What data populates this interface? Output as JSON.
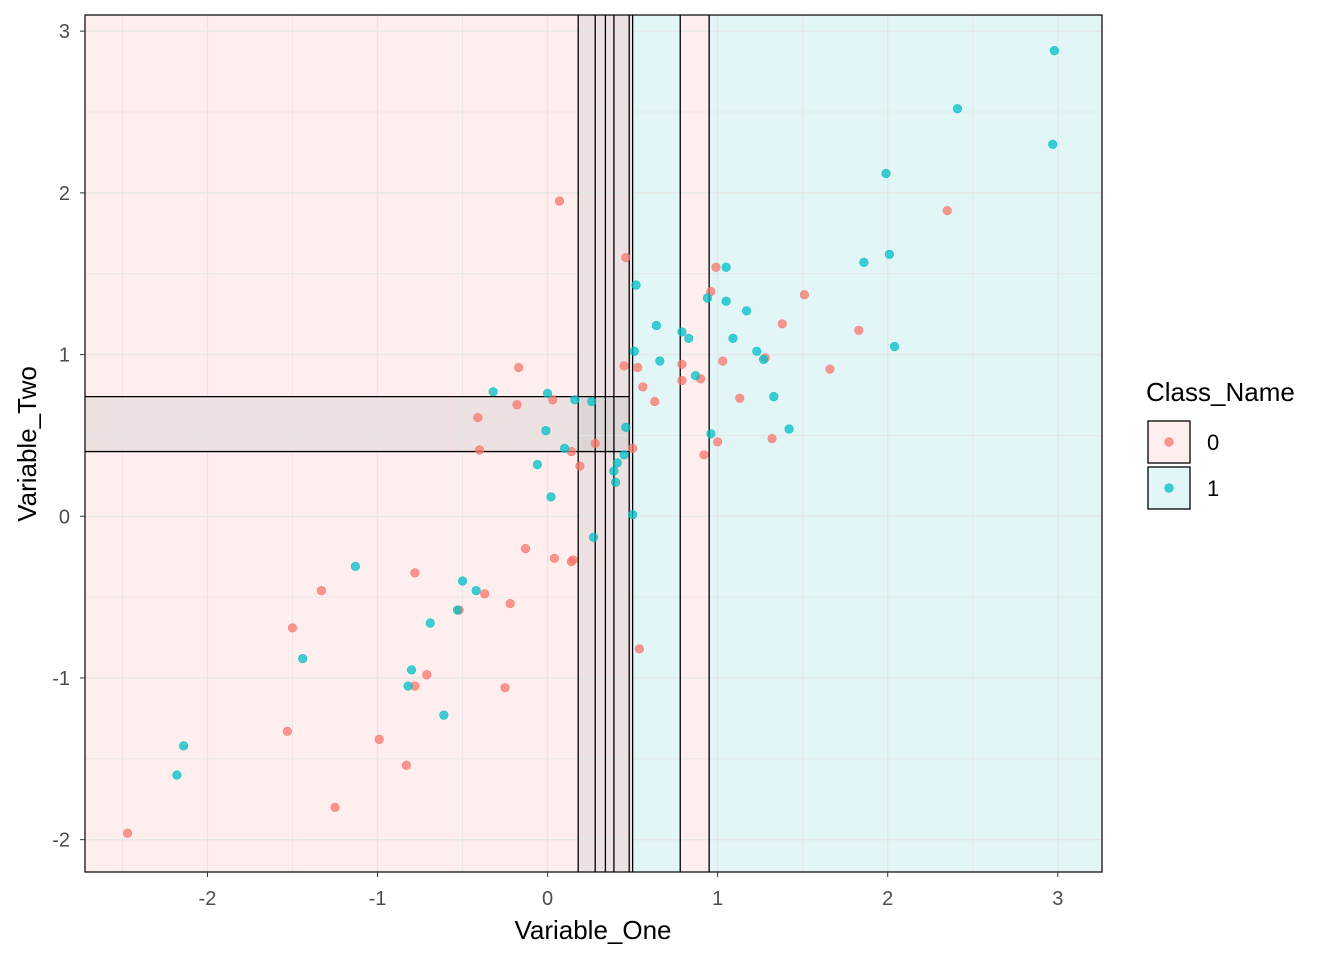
{
  "chart_data": {
    "type": "scatter",
    "title": "",
    "xlabel": "Variable_One",
    "ylabel": "Variable_Two",
    "xlim": [
      -2.72,
      3.26
    ],
    "ylim": [
      -2.2,
      3.1
    ],
    "x_ticks": [
      -2,
      -1,
      0,
      1,
      2,
      3
    ],
    "y_ticks": [
      -2,
      -1,
      0,
      1,
      2,
      3
    ],
    "x_tick_labels": [
      "-2",
      "-1",
      "0",
      "1",
      "2",
      "3"
    ],
    "y_tick_labels": [
      "-2",
      "-1",
      "0",
      "1",
      "2",
      "3"
    ],
    "grid": true,
    "legend": {
      "title": "Class_Name",
      "position": "right",
      "entries": [
        {
          "label": "0",
          "color": "#F8766D",
          "fill": "#FFEEEE"
        },
        {
          "label": "1",
          "color": "#00BFC4",
          "fill": "#E2F6F8"
        }
      ]
    },
    "regions": [
      {
        "class": "0",
        "x0": -2.72,
        "x1": 0.49,
        "y0": -2.2,
        "y1": 3.1
      },
      {
        "class": "1",
        "x0": 0.49,
        "x1": 0.78,
        "y0": -2.2,
        "y1": 3.1
      },
      {
        "class": "0",
        "x0": 0.78,
        "x1": 0.95,
        "y0": -2.2,
        "y1": 3.1
      },
      {
        "class": "1",
        "x0": 0.95,
        "x1": 3.26,
        "y0": -2.2,
        "y1": 3.1
      },
      {
        "class": "1",
        "x0": -2.72,
        "x1": 0.48,
        "y0": 0.4,
        "y1": 0.74
      },
      {
        "class": "1",
        "x0": 0.18,
        "x1": 0.49,
        "y0": -2.2,
        "y1": 3.1
      }
    ],
    "boundary_lines": {
      "vertical": [
        0.18,
        0.28,
        0.34,
        0.39,
        0.48,
        0.5,
        0.78,
        0.95
      ],
      "horizontal": [
        {
          "y": 0.74,
          "x0": -2.72,
          "x1": 0.48
        },
        {
          "y": 0.4,
          "x0": -2.72,
          "x1": 0.48
        }
      ]
    },
    "series": [
      {
        "name": "0",
        "color": "#F8766D",
        "points": [
          [
            -2.47,
            -1.96
          ],
          [
            -1.25,
            -1.8
          ],
          [
            -1.53,
            -1.33
          ],
          [
            -1.5,
            -0.69
          ],
          [
            -1.33,
            -0.46
          ],
          [
            -0.99,
            -1.38
          ],
          [
            -0.83,
            -1.54
          ],
          [
            -0.78,
            -1.05
          ],
          [
            -0.78,
            -0.35
          ],
          [
            -0.71,
            -0.98
          ],
          [
            -0.52,
            -0.58
          ],
          [
            -0.37,
            -0.48
          ],
          [
            -0.25,
            -1.06
          ],
          [
            -0.22,
            -0.54
          ],
          [
            -0.13,
            -0.2
          ],
          [
            0.04,
            -0.26
          ],
          [
            0.14,
            -0.28
          ],
          [
            0.15,
            -0.27
          ],
          [
            0.07,
            1.95
          ],
          [
            -0.4,
            0.41
          ],
          [
            -0.41,
            0.61
          ],
          [
            -0.17,
            0.92
          ],
          [
            -0.18,
            0.69
          ],
          [
            0.03,
            0.72
          ],
          [
            0.14,
            0.4
          ],
          [
            0.19,
            0.31
          ],
          [
            0.28,
            0.45
          ],
          [
            0.45,
            0.93
          ],
          [
            0.5,
            0.42
          ],
          [
            0.53,
            0.92
          ],
          [
            0.46,
            1.6
          ],
          [
            0.56,
            0.8
          ],
          [
            0.63,
            0.71
          ],
          [
            0.79,
            0.94
          ],
          [
            0.79,
            0.84
          ],
          [
            0.9,
            0.85
          ],
          [
            0.92,
            0.38
          ],
          [
            0.96,
            1.39
          ],
          [
            0.99,
            1.54
          ],
          [
            1.0,
            0.46
          ],
          [
            1.03,
            0.96
          ],
          [
            1.13,
            0.73
          ],
          [
            1.28,
            0.98
          ],
          [
            1.32,
            0.48
          ],
          [
            1.38,
            1.19
          ],
          [
            1.51,
            1.37
          ],
          [
            1.66,
            0.91
          ],
          [
            1.83,
            1.15
          ],
          [
            2.35,
            1.89
          ],
          [
            0.54,
            -0.82
          ]
        ]
      },
      {
        "name": "1",
        "color": "#00BFC4",
        "points": [
          [
            -2.18,
            -1.6
          ],
          [
            -2.14,
            -1.42
          ],
          [
            -1.44,
            -0.88
          ],
          [
            -1.13,
            -0.31
          ],
          [
            -0.82,
            -1.05
          ],
          [
            -0.8,
            -0.95
          ],
          [
            -0.69,
            -0.66
          ],
          [
            -0.61,
            -1.23
          ],
          [
            -0.53,
            -0.58
          ],
          [
            -0.5,
            -0.4
          ],
          [
            -0.42,
            -0.46
          ],
          [
            -0.32,
            0.77
          ],
          [
            -0.06,
            0.32
          ],
          [
            -0.01,
            0.53
          ],
          [
            0.0,
            0.76
          ],
          [
            0.02,
            0.12
          ],
          [
            0.1,
            0.42
          ],
          [
            0.16,
            0.72
          ],
          [
            0.26,
            0.71
          ],
          [
            0.27,
            -0.13
          ],
          [
            0.39,
            0.28
          ],
          [
            0.4,
            0.21
          ],
          [
            0.41,
            0.33
          ],
          [
            0.45,
            0.38
          ],
          [
            0.46,
            0.55
          ],
          [
            0.5,
            0.01
          ],
          [
            0.51,
            1.02
          ],
          [
            0.52,
            1.43
          ],
          [
            0.64,
            1.18
          ],
          [
            0.66,
            0.96
          ],
          [
            0.79,
            1.14
          ],
          [
            0.83,
            1.1
          ],
          [
            0.87,
            0.87
          ],
          [
            0.94,
            1.35
          ],
          [
            0.96,
            0.51
          ],
          [
            1.05,
            1.33
          ],
          [
            1.05,
            1.54
          ],
          [
            1.09,
            1.1
          ],
          [
            1.17,
            1.27
          ],
          [
            1.23,
            1.02
          ],
          [
            1.27,
            0.97
          ],
          [
            1.33,
            0.74
          ],
          [
            1.42,
            0.54
          ],
          [
            1.86,
            1.57
          ],
          [
            1.99,
            2.12
          ],
          [
            2.01,
            1.62
          ],
          [
            2.04,
            1.05
          ],
          [
            2.41,
            2.52
          ],
          [
            2.97,
            2.3
          ],
          [
            2.98,
            2.88
          ]
        ]
      }
    ]
  }
}
